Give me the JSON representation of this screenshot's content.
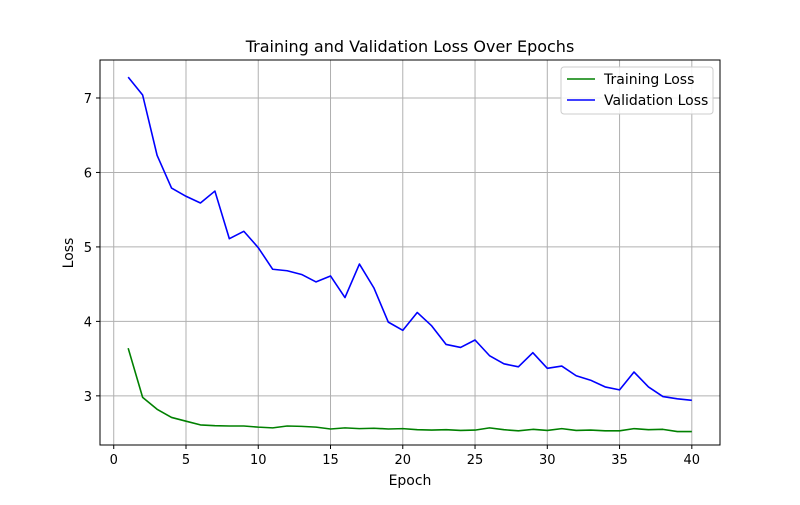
{
  "chart_data": {
    "type": "line",
    "title": "Training and Validation Loss Over Epochs",
    "xlabel": "Epoch",
    "ylabel": "Loss",
    "xlim": [
      -0.95,
      41.95
    ],
    "ylim": [
      2.34,
      7.51
    ],
    "xticks": [
      0,
      5,
      10,
      15,
      20,
      25,
      30,
      35,
      40
    ],
    "yticks": [
      3,
      4,
      5,
      6,
      7
    ],
    "grid": true,
    "legend_position": "top-right",
    "x": [
      1,
      2,
      3,
      4,
      5,
      6,
      7,
      8,
      9,
      10,
      11,
      12,
      13,
      14,
      15,
      16,
      17,
      18,
      19,
      20,
      21,
      22,
      23,
      24,
      25,
      26,
      27,
      28,
      29,
      30,
      31,
      32,
      33,
      34,
      35,
      36,
      37,
      38,
      39,
      40
    ],
    "series": [
      {
        "name": "Training Loss",
        "color": "#008000",
        "values": [
          3.64,
          2.98,
          2.82,
          2.71,
          2.66,
          2.61,
          2.6,
          2.595,
          2.595,
          2.58,
          2.57,
          2.595,
          2.59,
          2.58,
          2.555,
          2.57,
          2.56,
          2.565,
          2.555,
          2.56,
          2.545,
          2.54,
          2.545,
          2.535,
          2.54,
          2.57,
          2.545,
          2.53,
          2.55,
          2.535,
          2.56,
          2.535,
          2.54,
          2.53,
          2.53,
          2.56,
          2.545,
          2.55,
          2.52,
          2.52
        ]
      },
      {
        "name": "Validation Loss",
        "color": "#0000ff",
        "values": [
          7.28,
          7.04,
          6.23,
          5.79,
          5.68,
          5.59,
          5.75,
          5.11,
          5.21,
          4.99,
          4.7,
          4.68,
          4.63,
          4.53,
          4.61,
          4.32,
          4.77,
          4.45,
          3.99,
          3.88,
          4.12,
          3.94,
          3.69,
          3.65,
          3.75,
          3.54,
          3.43,
          3.39,
          3.58,
          3.37,
          3.4,
          3.27,
          3.21,
          3.12,
          3.08,
          3.32,
          3.12,
          2.99,
          2.96,
          2.94
        ]
      }
    ]
  }
}
